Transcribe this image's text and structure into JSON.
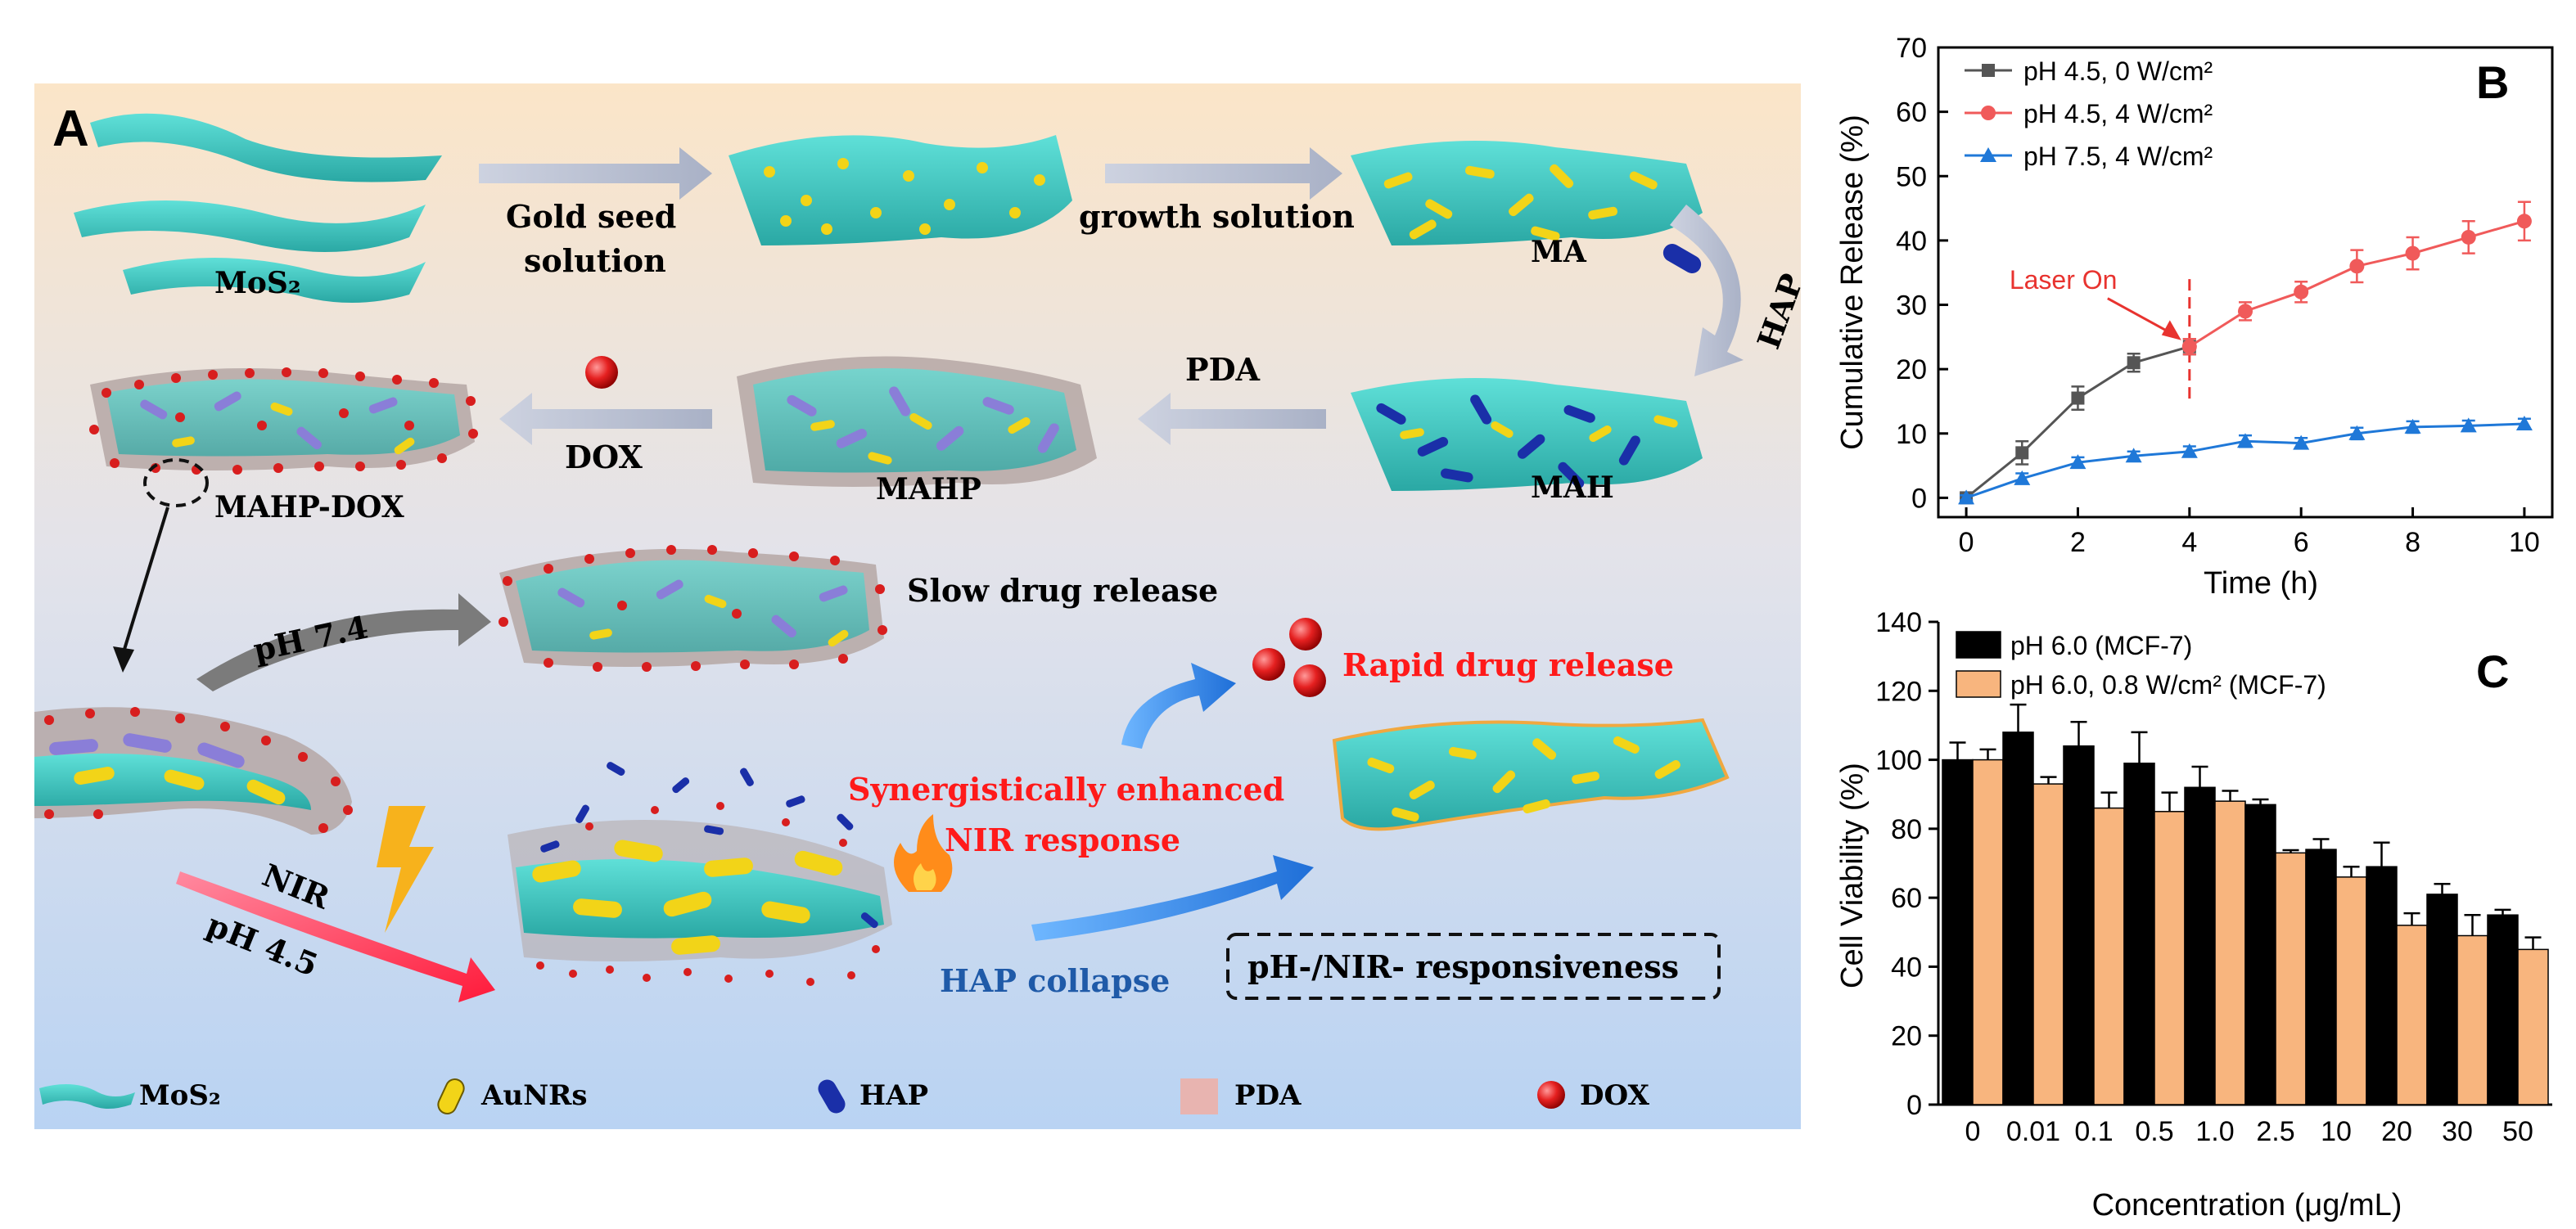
{
  "scheme": {
    "panel_label": "A",
    "labels": {
      "mos2": "MoS₂",
      "gold_seed_line1": "Gold seed",
      "gold_seed_line2": "solution",
      "growth_solution": "growth solution",
      "ma": "MA",
      "hap_arrow": "HAP",
      "pda_arrow": "PDA",
      "mah": "MAH",
      "mahp": "MAHP",
      "dox_arrow": "DOX",
      "mahp_dox": "MAHP-DOX",
      "ph74": "pH 7.4",
      "slow_release": "Slow drug release",
      "rapid_release": "Rapid drug release",
      "synergy_line1": "Synergistically enhanced",
      "synergy_line2": "NIR response",
      "nir": "NIR",
      "ph45": "pH 4.5",
      "hap_collapse": "HAP collapse",
      "responsiveness": "pH-/NIR- responsiveness"
    },
    "legend": [
      "MoS₂",
      "AuNRs",
      "HAP",
      "PDA",
      "DOX"
    ],
    "colors": {
      "mos2": "#3cc6c0",
      "aunr": "#f2d418",
      "hap": "#1a2fa8",
      "pda": "#e8b4b0",
      "dox": "#d81e1e",
      "accent_red": "#ff1a1a",
      "accent_blue": "#1f5aa8"
    }
  },
  "chart_data": [
    {
      "panel_label": "B",
      "type": "line",
      "xlabel": "Time (h)",
      "ylabel": "Cumulative Release (%)",
      "xlim": [
        -0.5,
        10.5
      ],
      "ylim": [
        -3,
        70
      ],
      "xticks": [
        0,
        2,
        4,
        6,
        8,
        10
      ],
      "yticks": [
        0,
        10,
        20,
        30,
        40,
        50,
        60,
        70
      ],
      "legend_position": "top-left",
      "annotation": {
        "text": "Laser On",
        "x": 4
      },
      "series": [
        {
          "name": "pH 4.5, 0 W/cm²",
          "color": "#555555",
          "marker": "square",
          "x": [
            0,
            1,
            2,
            3,
            4
          ],
          "y": [
            0,
            7,
            15.5,
            21,
            23.5
          ],
          "err": [
            0.5,
            1.8,
            1.8,
            1.4,
            1.2
          ]
        },
        {
          "name": "pH 4.5, 4 W/cm²",
          "color": "#f05a5a",
          "marker": "circle",
          "x": [
            4,
            5,
            6,
            7,
            8,
            9,
            10
          ],
          "y": [
            23.5,
            29,
            32,
            36,
            38,
            40.5,
            43
          ],
          "err": [
            1.2,
            1.4,
            1.6,
            2.5,
            2.5,
            2.5,
            3
          ]
        },
        {
          "name": "pH 7.5, 4 W/cm²",
          "color": "#1f78d8",
          "marker": "triangle",
          "x": [
            0,
            1,
            2,
            3,
            4,
            5,
            6,
            7,
            8,
            9,
            10
          ],
          "y": [
            0,
            3,
            5.5,
            6.5,
            7.2,
            8.8,
            8.5,
            10,
            11,
            11.2,
            11.5
          ],
          "err": [
            0.4,
            0.8,
            0.8,
            0.7,
            0.8,
            0.9,
            0.8,
            0.9,
            0.9,
            0.8,
            0.8
          ]
        }
      ]
    },
    {
      "panel_label": "C",
      "type": "bar",
      "xlabel": "Concentration (μg/mL)",
      "ylabel": "Cell Viability (%)",
      "ylim": [
        0,
        140
      ],
      "yticks": [
        0,
        20,
        40,
        60,
        80,
        100,
        120,
        140
      ],
      "legend_position": "top-left",
      "categories": [
        "0",
        "0.01",
        "0.1",
        "0.5",
        "1.0",
        "2.5",
        "10",
        "20",
        "30",
        "50"
      ],
      "series": [
        {
          "name": "pH 6.0 (MCF-7)",
          "color": "#000000",
          "values": [
            100,
            108,
            104,
            99,
            92,
            87,
            74,
            69,
            61,
            55
          ],
          "err": [
            5,
            8,
            7,
            9,
            6,
            1.5,
            3,
            7,
            3,
            1.5
          ]
        },
        {
          "name": "pH 6.0, 0.8 W/cm² (MCF-7)",
          "color": "#f8b57e",
          "values": [
            100,
            93,
            86,
            85,
            88,
            73,
            66,
            52,
            49,
            45
          ],
          "err": [
            3,
            2,
            4.5,
            5.5,
            3,
            0.8,
            3,
            3.5,
            6,
            3.5
          ]
        }
      ]
    }
  ]
}
